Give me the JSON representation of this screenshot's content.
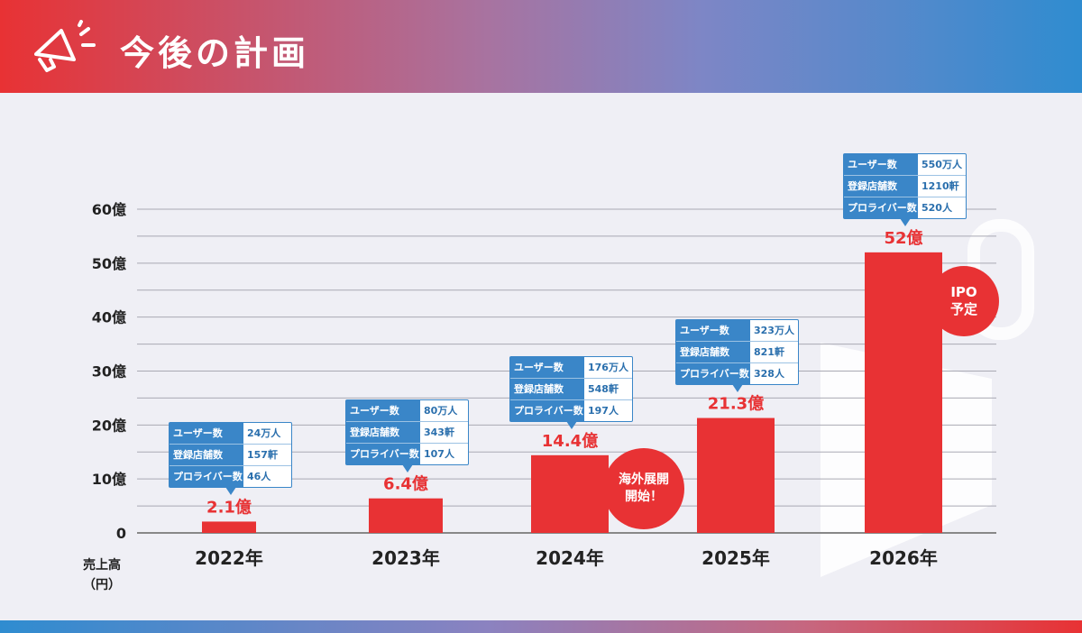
{
  "header": {
    "title": "今後の計画"
  },
  "chart_data": {
    "type": "bar",
    "categories": [
      "2022年",
      "2023年",
      "2024年",
      "2025年",
      "2026年"
    ],
    "values": [
      2.1,
      6.4,
      14.4,
      21.3,
      52
    ],
    "value_labels": [
      "2.1億",
      "6.4億",
      "14.4億",
      "21.3億",
      "52億"
    ],
    "yticks": [
      "0",
      "10億",
      "20億",
      "30億",
      "40億",
      "50億",
      "60億"
    ],
    "ylim": [
      0,
      60
    ],
    "ylabel": "売上高（円）",
    "ylabel_lines": [
      "売上高",
      "（円）"
    ],
    "bar_color": "#e83234",
    "grid": true,
    "info_labels": [
      "ユーザー数",
      "登録店舗数",
      "プロライバー数"
    ],
    "info": [
      [
        "24万人",
        "157軒",
        "46人"
      ],
      [
        "80万人",
        "343軒",
        "107人"
      ],
      [
        "176万人",
        "548軒",
        "197人"
      ],
      [
        "323万人",
        "821軒",
        "328人"
      ],
      [
        "550万人",
        "1210軒",
        "520人"
      ]
    ],
    "annotations": {
      "overseas": [
        "海外展開",
        "開始！"
      ],
      "ipo": [
        "IPO",
        "予定"
      ]
    }
  },
  "colors": {
    "accent_red": "#e83234",
    "accent_blue": "#3a86c8"
  }
}
